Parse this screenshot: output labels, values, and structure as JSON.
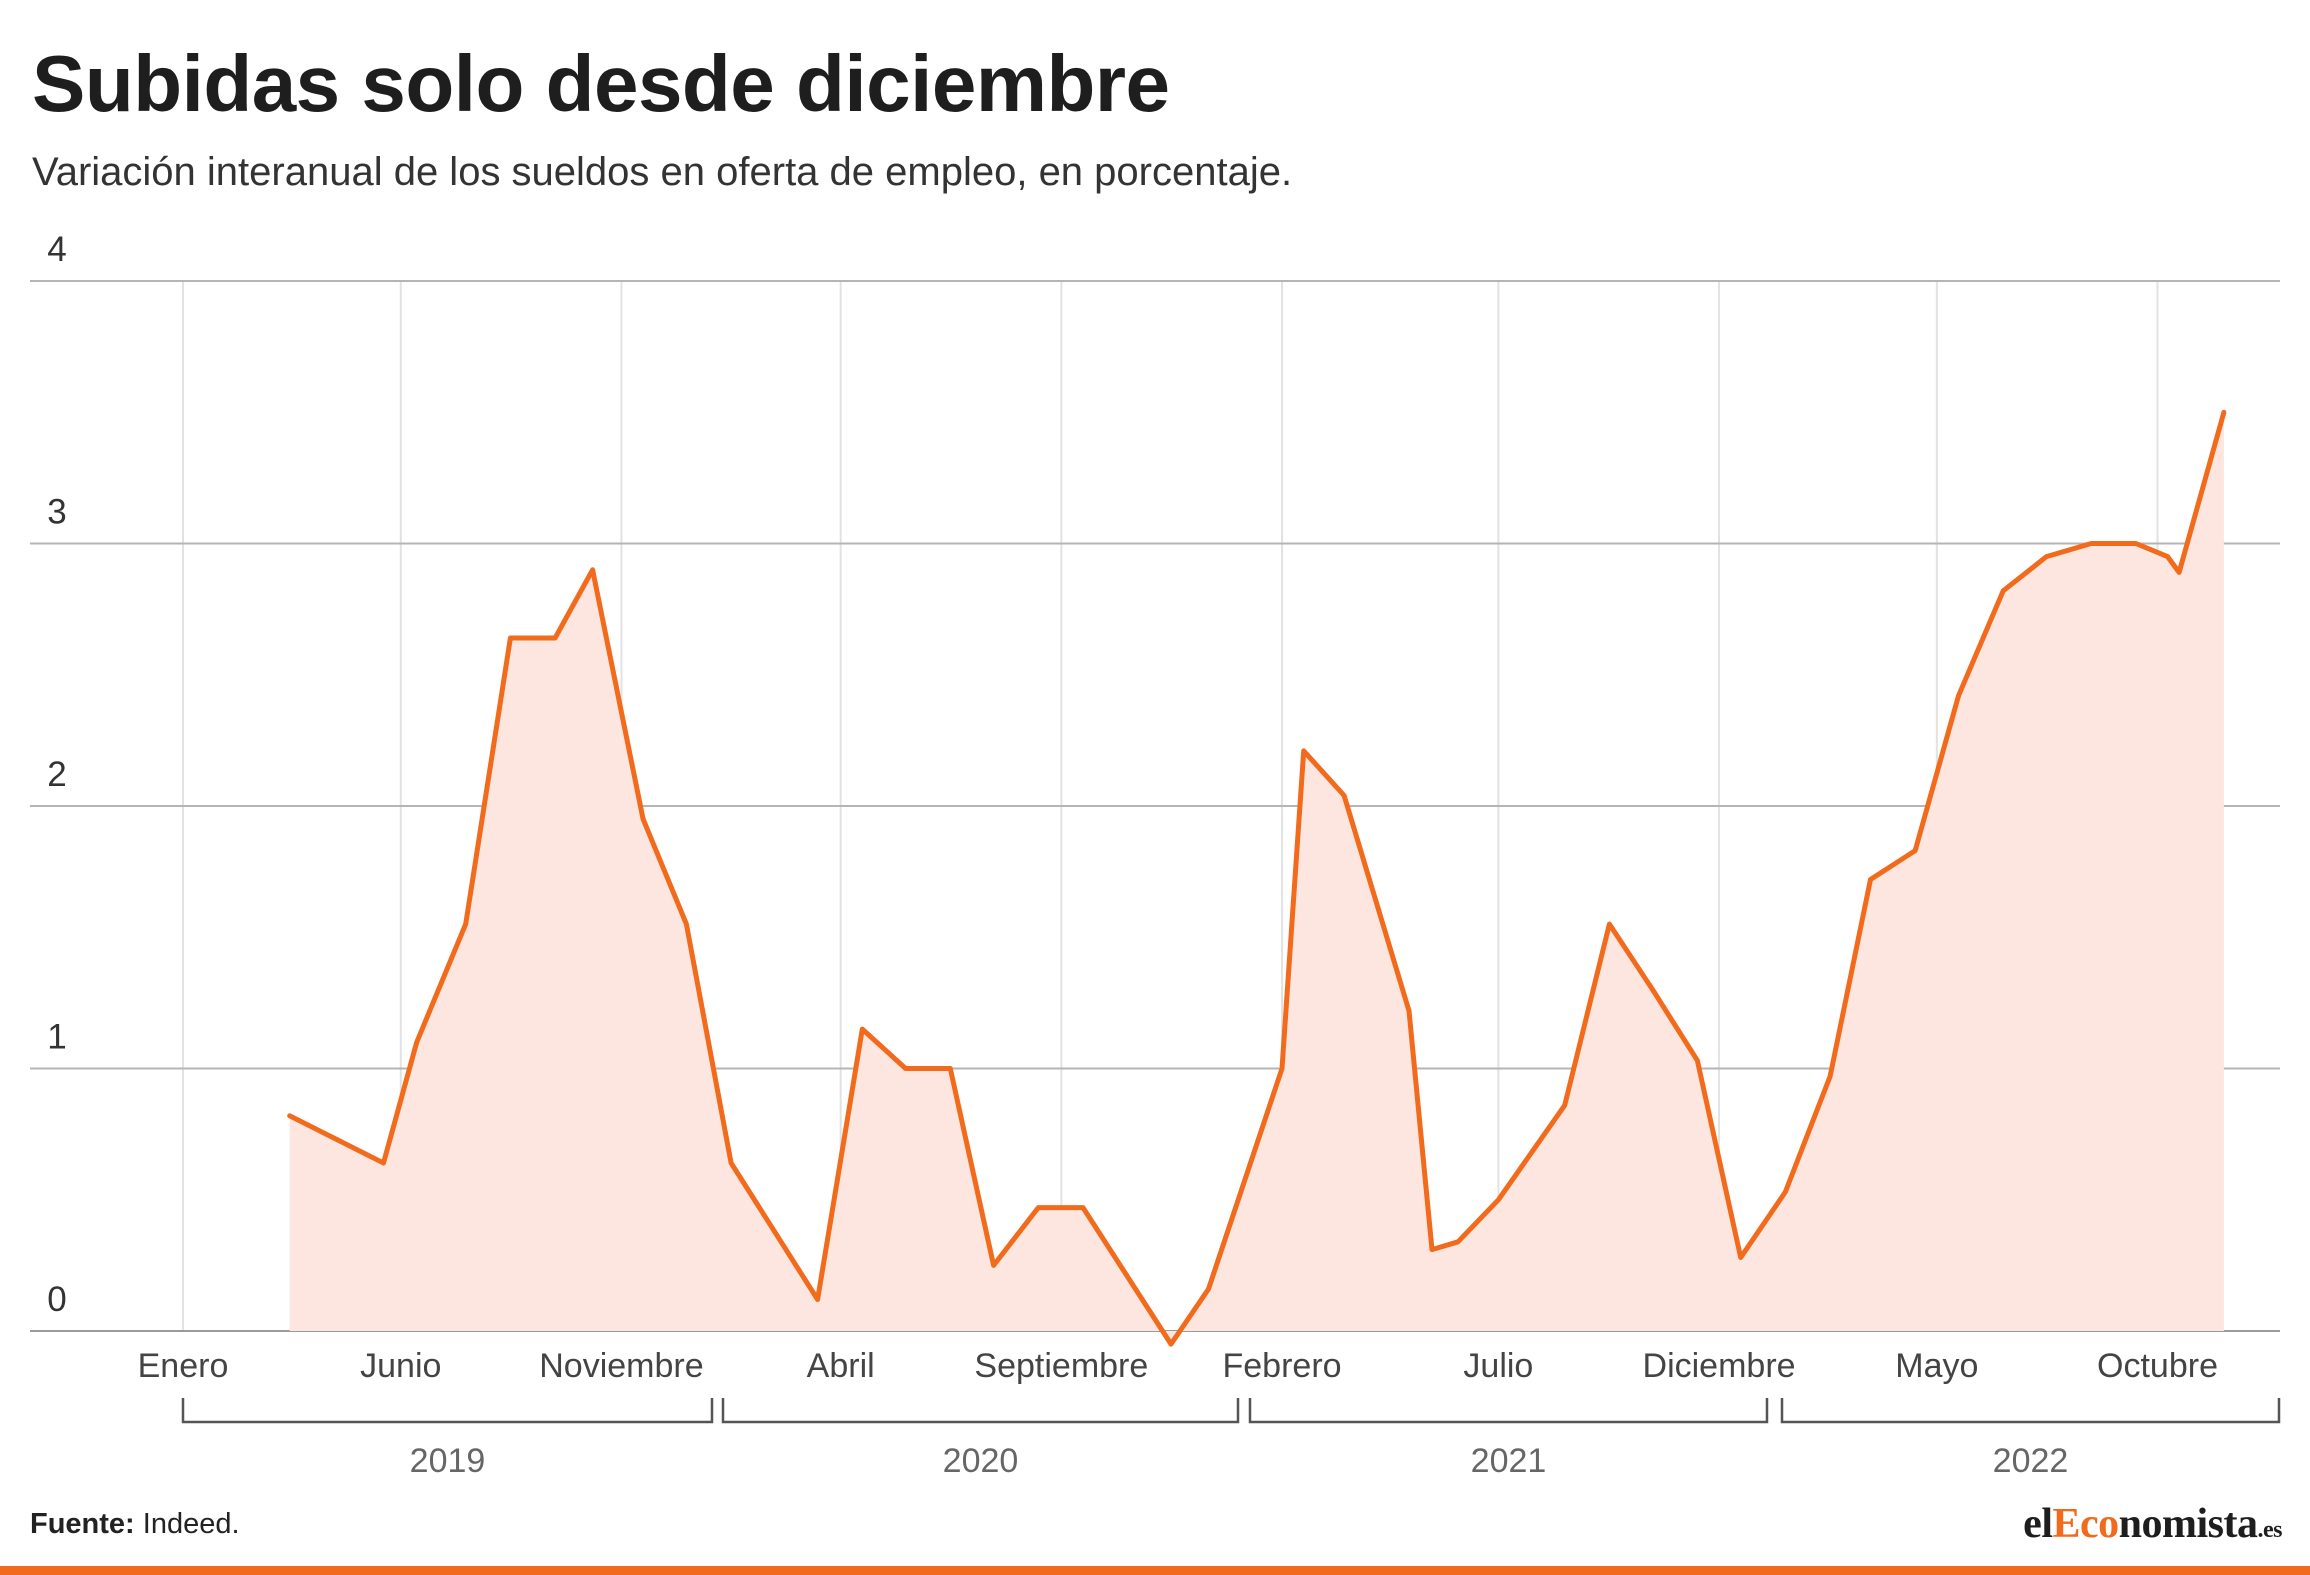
{
  "header": {
    "title": "Subidas solo desde diciembre",
    "subtitle": "Variación interanual de los sueldos en oferta de empleo, en porcentaje."
  },
  "footer": {
    "source_label": "Fuente:",
    "source_value": "Indeed.",
    "logo_prefix": "el",
    "logo_accent": "Eco",
    "logo_suffix": "nomista",
    "logo_tld": ".es"
  },
  "colors": {
    "line": "#f26a1b",
    "area": "#fde6df",
    "grid": "#b5b5b5",
    "bracket": "#555555",
    "accent": "#f26a1b"
  },
  "chart_data": {
    "type": "area",
    "ylim": [
      0,
      4
    ],
    "yticks": [
      0,
      1,
      2,
      3,
      4
    ],
    "grid": true,
    "month_ticks": [
      {
        "label": "Enero",
        "x": "2019-01"
      },
      {
        "label": "Junio",
        "x": "2019-06"
      },
      {
        "label": "Noviembre",
        "x": "2019-11"
      },
      {
        "label": "Abril",
        "x": "2020-04"
      },
      {
        "label": "Septiembre",
        "x": "2020-09"
      },
      {
        "label": "Febrero",
        "x": "2021-02"
      },
      {
        "label": "Julio",
        "x": "2021-07"
      },
      {
        "label": "Diciembre",
        "x": "2021-12"
      },
      {
        "label": "Mayo",
        "x": "2022-05"
      },
      {
        "label": "Octubre",
        "x": "2022-10"
      }
    ],
    "years": [
      "2019",
      "2020",
      "2021",
      "2022"
    ],
    "series": [
      {
        "values": [
          [
            "2019-03-16",
            0.82
          ],
          [
            "2019-05-20",
            0.64
          ],
          [
            "2019-06-12",
            1.1
          ],
          [
            "2019-07-16",
            1.55
          ],
          [
            "2019-08-16",
            2.64
          ],
          [
            "2019-09-16",
            2.64
          ],
          [
            "2019-10-12",
            2.9
          ],
          [
            "2019-11-16",
            1.95
          ],
          [
            "2019-12-16",
            1.55
          ],
          [
            "2020-01-16",
            0.64
          ],
          [
            "2020-03-16",
            0.12
          ],
          [
            "2020-04-16",
            1.15
          ],
          [
            "2020-05-16",
            1.0
          ],
          [
            "2020-06-16",
            1.0
          ],
          [
            "2020-07-16",
            0.25
          ],
          [
            "2020-08-16",
            0.47
          ],
          [
            "2020-09-16",
            0.47
          ],
          [
            "2020-11-16",
            -0.05
          ],
          [
            "2020-12-12",
            0.16
          ],
          [
            "2021-02-01",
            1.0
          ],
          [
            "2021-02-16",
            2.21
          ],
          [
            "2021-03-16",
            2.04
          ],
          [
            "2021-04-30",
            1.22
          ],
          [
            "2021-05-16",
            0.31
          ],
          [
            "2021-06-03",
            0.34
          ],
          [
            "2021-07-01",
            0.5
          ],
          [
            "2021-08-16",
            0.86
          ],
          [
            "2021-09-16",
            1.55
          ],
          [
            "2021-10-16",
            1.3
          ],
          [
            "2021-11-16",
            1.03
          ],
          [
            "2021-12-16",
            0.28
          ],
          [
            "2022-01-16",
            0.53
          ],
          [
            "2022-02-16",
            0.97
          ],
          [
            "2022-03-16",
            1.72
          ],
          [
            "2022-04-16",
            1.83
          ],
          [
            "2022-05-16",
            2.42
          ],
          [
            "2022-06-16",
            2.82
          ],
          [
            "2022-07-16",
            2.95
          ],
          [
            "2022-08-16",
            3.0
          ],
          [
            "2022-09-16",
            3.0
          ],
          [
            "2022-10-08",
            2.95
          ],
          [
            "2022-10-16",
            2.89
          ],
          [
            "2022-11-16",
            3.5
          ]
        ]
      }
    ]
  }
}
